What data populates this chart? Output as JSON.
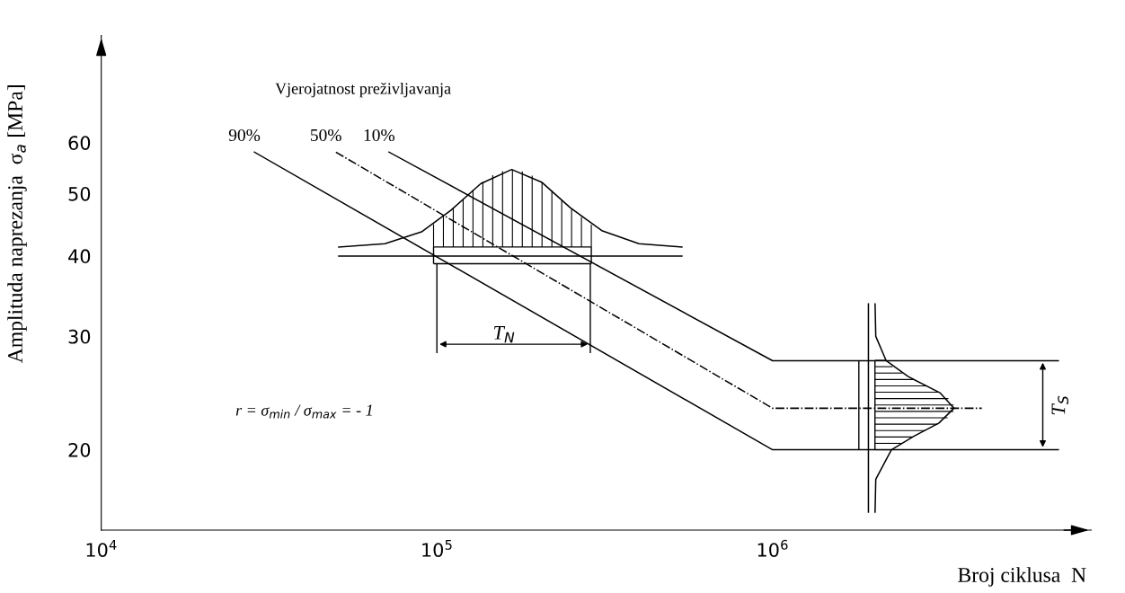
{
  "chart_data": {
    "type": "line",
    "xlabel": "Broj ciklusa  N",
    "ylabel": "Amplituda naprezanja  σ$_{a}$ [MPa]",
    "log": "xy",
    "xlim": [
      10000,
      8900000
    ],
    "ylim": [
      15,
      88
    ],
    "xticks": [
      {
        "value": 10000,
        "label": "10$^{4}$"
      },
      {
        "value": 100000,
        "label": "10$^{5}$"
      },
      {
        "value": 1000000,
        "label": "10$^{6}$"
      }
    ],
    "yticks": [
      20,
      30,
      40,
      50,
      60
    ],
    "series": [
      {
        "name": "90%",
        "color": "#000000",
        "line_style": "solid",
        "x": [
          28600,
          1000000,
          7100000
        ],
        "values": [
          58,
          20,
          20
        ]
      },
      {
        "name": "50%",
        "color": "#000000",
        "line_style": "dashdot",
        "x": [
          50000,
          1000000,
          4200000
        ],
        "values": [
          58,
          23.2,
          23.2
        ]
      },
      {
        "name": "10%",
        "color": "#000000",
        "line_style": "solid",
        "x": [
          72000,
          1000000,
          7100000
        ],
        "values": [
          58,
          27.5,
          27.5
        ]
      },
      {
        "color": "#000000",
        "line_style": "solid",
        "x": [
          51000,
          70000,
          90000,
          110000,
          135000,
          167000,
          205000,
          250000,
          310000,
          400000,
          537000
        ],
        "values": [
          41.3,
          41.8,
          43.6,
          47.1,
          51.8,
          54.5,
          52.1,
          47.5,
          43.8,
          41.8,
          41.3
        ]
      },
      {
        "color": "#000000",
        "line_style": "solid",
        "x": [
          51000,
          537000
        ],
        "values": [
          40,
          40
        ]
      },
      {
        "color": "#000000",
        "line_style": "solid",
        "x": [
          2020000,
          2030000,
          2260000,
          2640000,
          3130000,
          3470000,
          3160000,
          2530000,
          2180000,
          2030000,
          2020000
        ],
        "values": [
          16,
          18,
          20,
          21,
          22,
          23.2,
          24.5,
          26,
          27.5,
          30,
          33.7
        ]
      },
      {
        "color": "#000000",
        "line_style": "solid",
        "x": [
          1930000,
          1930000
        ],
        "values": [
          16,
          33.7
        ]
      }
    ],
    "annotations": [
      "Vjerojatnost preživljavanja",
      "T$_{N}$",
      "r = σ$_{min}$ / σ$_{max}$ = - 1",
      "T$_{S}$"
    ]
  }
}
